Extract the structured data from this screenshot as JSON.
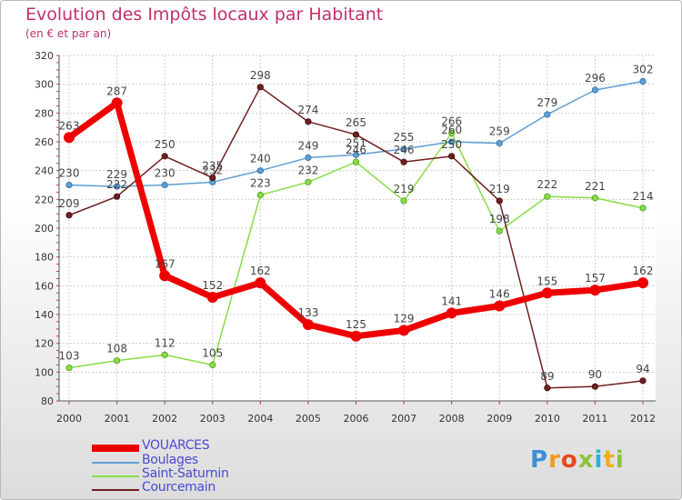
{
  "chart_data": {
    "type": "line",
    "title": "Evolution des Impôts locaux par Habitant",
    "subtitle": "(en € et par an)",
    "xlabel": "",
    "ylabel": "",
    "x": [
      "2000",
      "2001",
      "2002",
      "2003",
      "2004",
      "2005",
      "2006",
      "2007",
      "2008",
      "2009",
      "2010",
      "2011",
      "2012"
    ],
    "ylim": [
      80,
      320
    ],
    "yticks": [
      80,
      100,
      120,
      140,
      160,
      180,
      200,
      220,
      240,
      260,
      280,
      300,
      320
    ],
    "grid": true,
    "legend_position": "bottom-left",
    "series": [
      {
        "name": "VOUARCES",
        "color": "#ee0000",
        "values": [
          263,
          287,
          167,
          152,
          162,
          133,
          125,
          129,
          141,
          146,
          155,
          157,
          162
        ]
      },
      {
        "name": "Boulages",
        "color": "#5f9ed2",
        "values": [
          230,
          229,
          230,
          232,
          240,
          249,
          251,
          255,
          260,
          259,
          279,
          296,
          302
        ]
      },
      {
        "name": "Saint-Saturnin",
        "color": "#88dd44",
        "values": [
          103,
          108,
          112,
          105,
          223,
          232,
          246,
          219,
          266,
          198,
          222,
          221,
          214
        ]
      },
      {
        "name": "Courcemain",
        "color": "#702020",
        "values": [
          209,
          222,
          250,
          235,
          298,
          274,
          265,
          246,
          250,
          219,
          89,
          90,
          94
        ]
      }
    ]
  },
  "logo": {
    "letters": [
      "P",
      "r",
      "o",
      "x",
      "i",
      "t",
      "i"
    ],
    "colors": [
      "#3a8fd8",
      "#f39a1c",
      "#e84a1c",
      "#8bc43f",
      "#2bb0e0",
      "#e8b21c",
      "#8bc43f"
    ]
  }
}
